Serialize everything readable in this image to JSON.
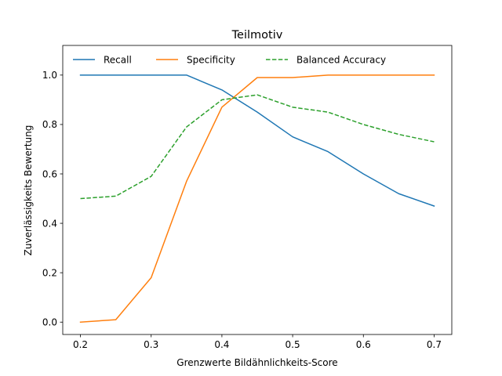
{
  "chart_data": {
    "type": "line",
    "title": "Teilmotiv",
    "xlabel": "Grenzwerte Bildähnlichkeits-Score",
    "ylabel": "Zuverlässigkeits Bewertung",
    "xlim": [
      0.175,
      0.725
    ],
    "ylim": [
      -0.05,
      1.12
    ],
    "xticks": [
      0.2,
      0.3,
      0.4,
      0.5,
      0.6,
      0.7
    ],
    "xtick_labels": [
      "0.2",
      "0.3",
      "0.4",
      "0.5",
      "0.6",
      "0.7"
    ],
    "yticks": [
      0.0,
      0.2,
      0.4,
      0.6,
      0.8,
      1.0
    ],
    "ytick_labels": [
      "0.0",
      "0.2",
      "0.4",
      "0.6",
      "0.8",
      "1.0"
    ],
    "grid": false,
    "legend_position": "top",
    "x": [
      0.2,
      0.25,
      0.3,
      0.35,
      0.4,
      0.45,
      0.5,
      0.55,
      0.6,
      0.65,
      0.7
    ],
    "series": [
      {
        "name": "Recall",
        "color": "#1f77b4",
        "dash": "solid",
        "values": [
          1.0,
          1.0,
          1.0,
          1.0,
          0.94,
          0.85,
          0.75,
          0.69,
          0.6,
          0.52,
          0.47
        ]
      },
      {
        "name": "Specificity",
        "color": "#ff7f0e",
        "dash": "solid",
        "values": [
          0.0,
          0.01,
          0.18,
          0.57,
          0.87,
          0.99,
          0.99,
          1.0,
          1.0,
          1.0,
          1.0
        ]
      },
      {
        "name": "Balanced Accuracy",
        "color": "#2ca02c",
        "dash": "dashed",
        "values": [
          0.5,
          0.51,
          0.59,
          0.79,
          0.9,
          0.92,
          0.87,
          0.85,
          0.8,
          0.76,
          0.73
        ]
      }
    ]
  }
}
